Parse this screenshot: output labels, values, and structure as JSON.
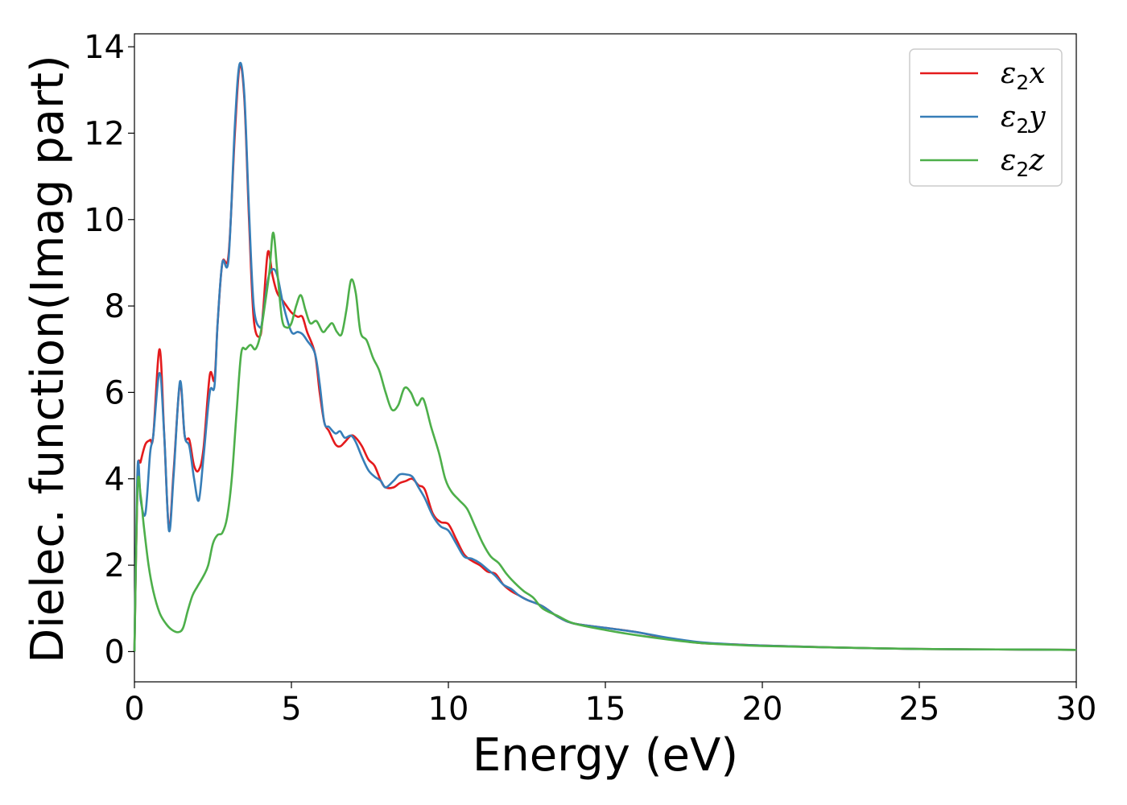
{
  "chart_data": {
    "type": "line",
    "title": "",
    "xlabel": "Energy (eV)",
    "ylabel": "Dielec. function(Imag part)",
    "xlim": [
      0,
      30
    ],
    "ylim": [
      -0.7,
      14.3
    ],
    "xticks": [
      0,
      5,
      10,
      15,
      20,
      25,
      30
    ],
    "yticks": [
      0,
      2,
      4,
      6,
      8,
      10,
      12,
      14
    ],
    "grid": false,
    "legend_position": "top-right",
    "colors": {
      "x": "#e41a1c",
      "y": "#377eb8",
      "z": "#4daf4a"
    },
    "series": [
      {
        "key": "x",
        "name_base": "ε",
        "name_sub": "2",
        "name_suffix": "x",
        "x": [
          0,
          0.1,
          0.2,
          0.35,
          0.5,
          0.6,
          0.8,
          0.95,
          1.1,
          1.25,
          1.45,
          1.6,
          1.75,
          1.9,
          2.05,
          2.2,
          2.4,
          2.55,
          2.65,
          2.8,
          3.0,
          3.2,
          3.35,
          3.5,
          3.65,
          3.8,
          4.0,
          4.1,
          4.25,
          4.4,
          4.55,
          4.75,
          5.0,
          5.2,
          5.35,
          5.5,
          5.75,
          5.9,
          6.05,
          6.2,
          6.4,
          6.55,
          6.7,
          6.9,
          7.05,
          7.25,
          7.45,
          7.65,
          7.85,
          8.0,
          8.25,
          8.45,
          8.65,
          8.85,
          9.05,
          9.25,
          9.5,
          9.75,
          10.0,
          10.25,
          10.5,
          10.75,
          11.0,
          11.25,
          11.5,
          11.75,
          12.0,
          12.25,
          12.5,
          13.0,
          13.5,
          14.0,
          15.0,
          16.0,
          17.0,
          18.0,
          19.0,
          20.0,
          22.0,
          25.0,
          27.5,
          30.0
        ],
        "values": [
          0,
          4.0,
          4.4,
          4.8,
          4.9,
          5.0,
          7.0,
          5.0,
          2.85,
          4.2,
          6.2,
          5.0,
          4.9,
          4.3,
          4.2,
          4.7,
          6.4,
          6.3,
          7.6,
          9.0,
          9.2,
          12.0,
          13.55,
          12.8,
          10.0,
          7.7,
          7.3,
          7.9,
          9.25,
          8.7,
          8.3,
          8.1,
          7.85,
          7.75,
          7.75,
          7.4,
          6.9,
          6.0,
          5.3,
          5.1,
          4.8,
          4.75,
          4.85,
          5.0,
          4.95,
          4.75,
          4.45,
          4.3,
          3.95,
          3.8,
          3.8,
          3.9,
          3.95,
          4.0,
          3.85,
          3.75,
          3.2,
          3.0,
          2.95,
          2.6,
          2.25,
          2.1,
          2.0,
          1.85,
          1.8,
          1.55,
          1.4,
          1.3,
          1.2,
          1.05,
          0.8,
          0.65,
          0.55,
          0.45,
          0.3,
          0.2,
          0.17,
          0.14,
          0.1,
          0.06,
          0.05,
          0.04
        ]
      },
      {
        "key": "y",
        "name_base": "ε",
        "name_sub": "2",
        "name_suffix": "y",
        "x": [
          0,
          0.1,
          0.2,
          0.35,
          0.5,
          0.6,
          0.8,
          0.95,
          1.1,
          1.25,
          1.45,
          1.6,
          1.75,
          1.9,
          2.05,
          2.2,
          2.4,
          2.55,
          2.65,
          2.8,
          3.0,
          3.2,
          3.35,
          3.5,
          3.65,
          3.8,
          4.0,
          4.1,
          4.25,
          4.4,
          4.55,
          4.75,
          5.0,
          5.2,
          5.35,
          5.5,
          5.75,
          5.9,
          6.05,
          6.2,
          6.4,
          6.55,
          6.7,
          6.9,
          7.05,
          7.25,
          7.45,
          7.65,
          7.85,
          8.0,
          8.25,
          8.45,
          8.65,
          8.85,
          9.05,
          9.25,
          9.5,
          9.75,
          10.0,
          10.25,
          10.5,
          10.75,
          11.0,
          11.25,
          11.5,
          11.75,
          12.0,
          12.25,
          12.5,
          13.0,
          13.5,
          14.0,
          15.0,
          16.0,
          17.0,
          18.0,
          19.0,
          20.0,
          22.0,
          25.0,
          27.5,
          30.0
        ],
        "values": [
          0,
          4.25,
          3.5,
          3.2,
          4.6,
          5.0,
          6.45,
          5.0,
          2.8,
          4.1,
          6.25,
          5.0,
          4.75,
          4.0,
          3.5,
          4.5,
          6.0,
          6.15,
          7.6,
          9.0,
          9.1,
          12.2,
          13.6,
          12.9,
          10.2,
          8.0,
          7.5,
          7.8,
          8.6,
          8.85,
          8.7,
          8.0,
          7.4,
          7.4,
          7.35,
          7.2,
          6.9,
          6.2,
          5.3,
          5.2,
          5.05,
          5.1,
          4.95,
          5.0,
          4.85,
          4.5,
          4.2,
          4.05,
          3.95,
          3.8,
          3.95,
          4.1,
          4.1,
          4.05,
          3.8,
          3.55,
          3.15,
          2.9,
          2.8,
          2.5,
          2.2,
          2.15,
          2.05,
          1.9,
          1.75,
          1.55,
          1.45,
          1.3,
          1.2,
          1.05,
          0.8,
          0.65,
          0.55,
          0.45,
          0.32,
          0.22,
          0.17,
          0.14,
          0.1,
          0.06,
          0.05,
          0.04
        ]
      },
      {
        "key": "z",
        "name_base": "ε",
        "name_sub": "2",
        "name_suffix": "z",
        "x": [
          0,
          0.1,
          0.2,
          0.3,
          0.45,
          0.6,
          0.8,
          1.0,
          1.2,
          1.4,
          1.55,
          1.7,
          1.85,
          2.0,
          2.2,
          2.35,
          2.5,
          2.65,
          2.8,
          2.95,
          3.1,
          3.25,
          3.4,
          3.55,
          3.7,
          3.85,
          4.0,
          4.15,
          4.3,
          4.42,
          4.55,
          4.7,
          4.85,
          5.0,
          5.15,
          5.3,
          5.45,
          5.6,
          5.8,
          6.0,
          6.15,
          6.3,
          6.45,
          6.6,
          6.75,
          6.9,
          7.05,
          7.2,
          7.4,
          7.6,
          7.8,
          8.0,
          8.2,
          8.4,
          8.6,
          8.8,
          9.0,
          9.2,
          9.45,
          9.7,
          9.9,
          10.1,
          10.35,
          10.6,
          10.85,
          11.1,
          11.35,
          11.6,
          11.85,
          12.1,
          12.4,
          12.7,
          13.0,
          13.5,
          14.0,
          15.0,
          16.0,
          17.0,
          18.0,
          19.0,
          20.0,
          22.0,
          25.0,
          27.5,
          30.0
        ],
        "values": [
          0,
          3.8,
          3.6,
          2.9,
          2.0,
          1.4,
          0.9,
          0.65,
          0.5,
          0.45,
          0.55,
          0.95,
          1.3,
          1.5,
          1.75,
          2.0,
          2.5,
          2.7,
          2.75,
          3.1,
          4.0,
          5.5,
          6.9,
          7.0,
          7.1,
          7.0,
          7.3,
          8.0,
          8.8,
          9.7,
          8.8,
          7.7,
          7.5,
          7.6,
          8.0,
          8.25,
          7.9,
          7.6,
          7.65,
          7.4,
          7.5,
          7.6,
          7.4,
          7.35,
          7.9,
          8.6,
          8.3,
          7.4,
          7.2,
          6.8,
          6.5,
          6.0,
          5.6,
          5.7,
          6.1,
          6.0,
          5.7,
          5.85,
          5.2,
          4.6,
          4.0,
          3.7,
          3.5,
          3.3,
          2.9,
          2.5,
          2.2,
          2.05,
          1.8,
          1.6,
          1.4,
          1.25,
          1.0,
          0.82,
          0.65,
          0.5,
          0.38,
          0.28,
          0.2,
          0.16,
          0.13,
          0.1,
          0.06,
          0.05,
          0.04
        ]
      }
    ]
  }
}
